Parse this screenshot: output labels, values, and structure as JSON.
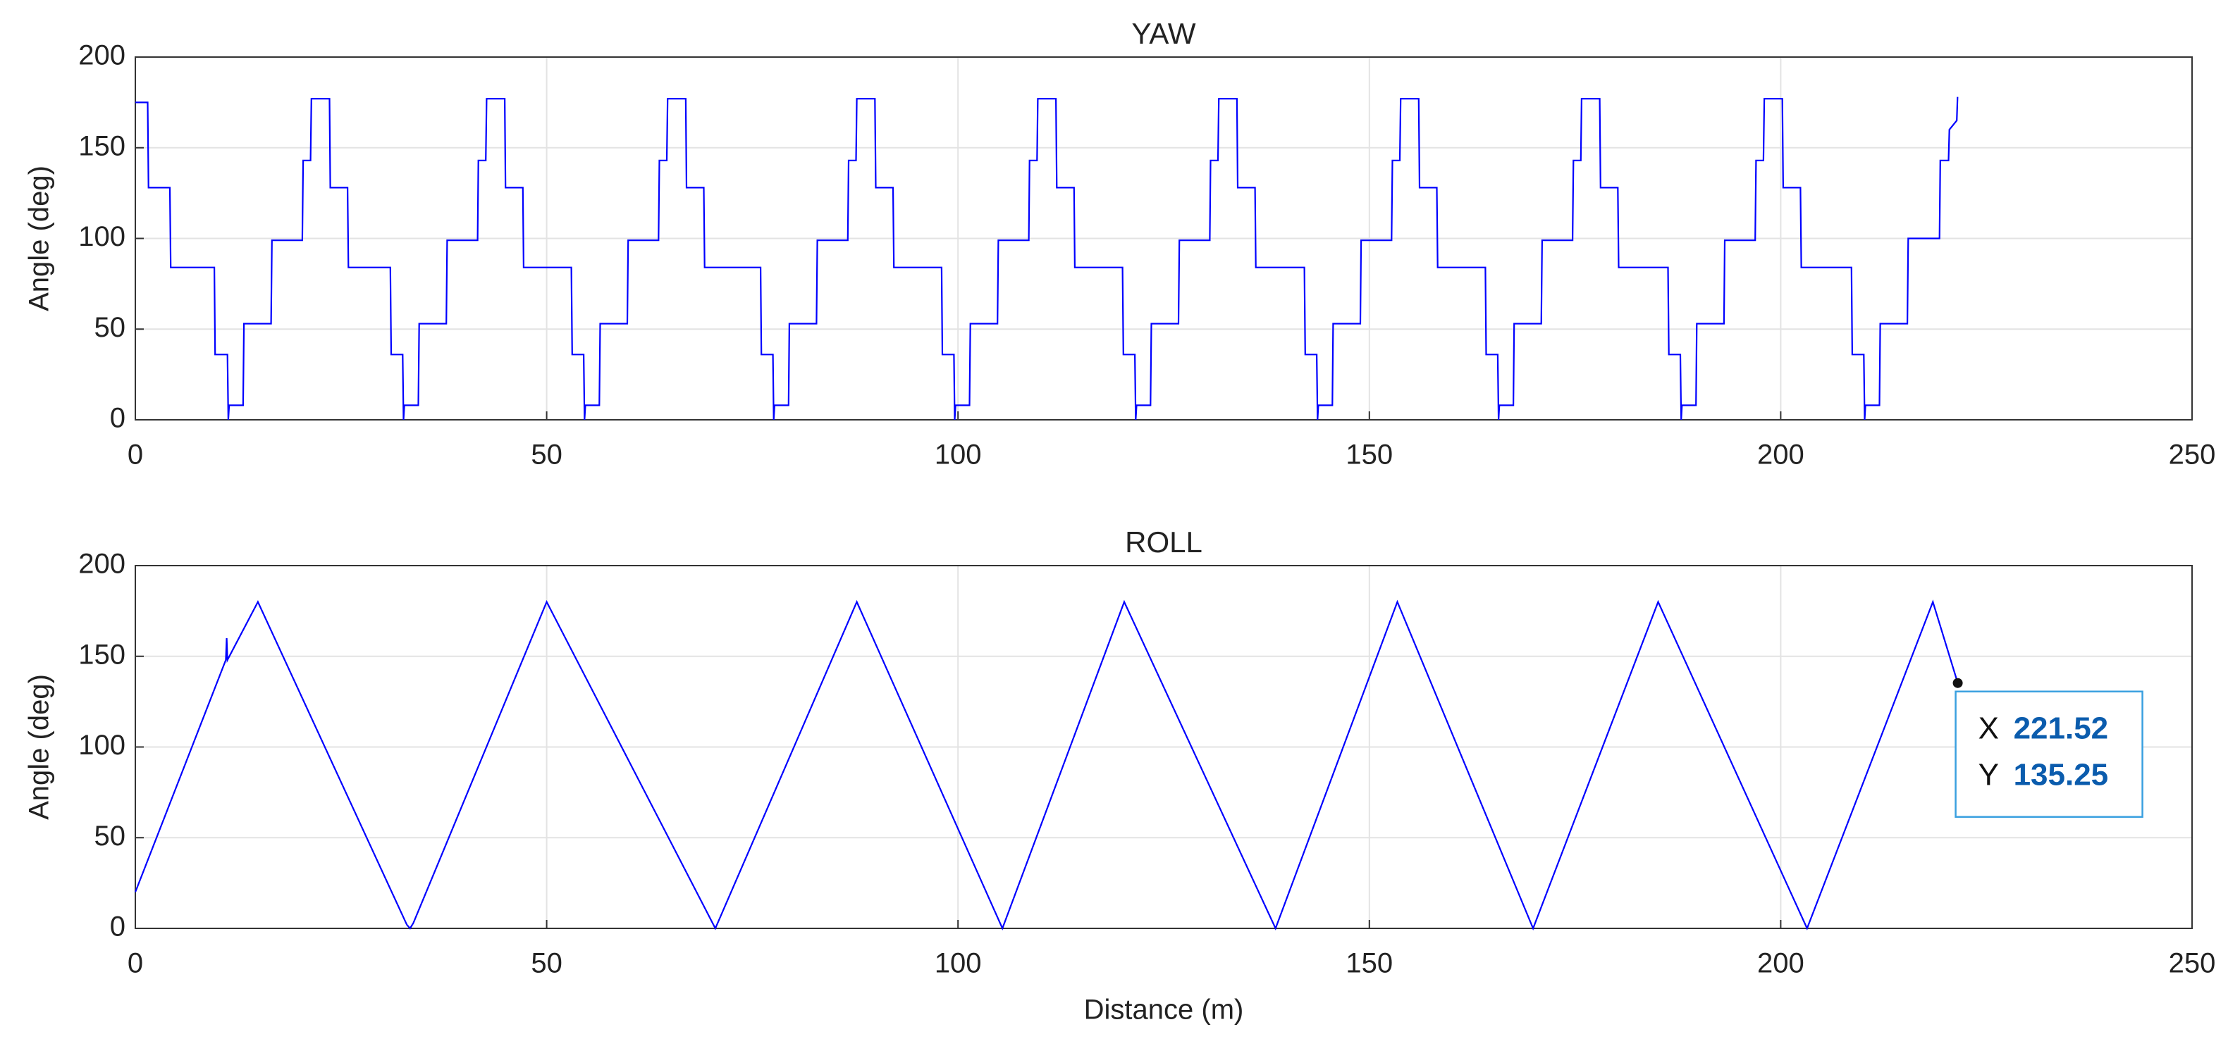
{
  "chart_data": [
    {
      "type": "line",
      "title": "YAW",
      "ylabel": "Angle (deg)",
      "color": "#0000ff",
      "grid": true,
      "xlim": [
        0,
        250
      ],
      "xticks": [
        0,
        50,
        100,
        150,
        200,
        250
      ],
      "ylim": [
        0,
        200
      ],
      "yticks": [
        0,
        50,
        100,
        150,
        200
      ],
      "x": [
        0,
        1.5,
        1.6,
        4.2,
        4.3,
        9.6,
        9.7,
        11.2,
        11.3,
        11.4,
        13.1,
        13.2,
        16.5,
        16.6,
        20.3,
        20.4,
        21.3,
        21.4,
        23.6,
        23.7,
        25.8,
        25.9,
        31.0,
        31.1,
        32.5,
        32.6,
        32.7,
        34.4,
        34.5,
        37.8,
        37.9,
        41.6,
        41.7,
        42.6,
        42.7,
        44.9,
        45.0,
        47.1,
        47.2,
        53.0,
        53.1,
        54.5,
        54.6,
        54.7,
        56.4,
        56.5,
        59.8,
        59.9,
        63.6,
        63.7,
        64.6,
        64.7,
        66.9,
        67.0,
        69.1,
        69.2,
        76.0,
        76.1,
        77.5,
        77.6,
        77.7,
        79.4,
        79.5,
        82.8,
        82.9,
        86.6,
        86.7,
        87.6,
        87.7,
        89.9,
        90.0,
        92.1,
        92.2,
        98.0,
        98.1,
        99.5,
        99.6,
        99.7,
        101.4,
        101.5,
        104.8,
        104.9,
        108.6,
        108.7,
        109.6,
        109.7,
        111.9,
        112.0,
        114.1,
        114.2,
        120.0,
        120.1,
        121.5,
        121.6,
        121.7,
        123.4,
        123.5,
        126.8,
        126.9,
        130.6,
        130.7,
        131.6,
        131.7,
        133.9,
        134.0,
        136.1,
        136.2,
        142.1,
        142.2,
        143.6,
        143.7,
        143.8,
        145.5,
        145.6,
        148.9,
        149.0,
        152.7,
        152.8,
        153.7,
        153.8,
        156.0,
        156.1,
        158.2,
        158.3,
        164.1,
        164.2,
        165.6,
        165.7,
        165.8,
        167.5,
        167.6,
        170.9,
        171.0,
        174.7,
        174.8,
        175.7,
        175.8,
        178.0,
        178.1,
        180.2,
        180.3,
        186.3,
        186.4,
        187.8,
        187.9,
        188.0,
        189.7,
        189.8,
        193.1,
        193.2,
        196.9,
        197.0,
        197.9,
        198.0,
        200.2,
        200.3,
        202.4,
        202.5,
        208.6,
        208.7,
        210.1,
        210.2,
        210.3,
        212.0,
        212.1,
        215.4,
        215.5,
        219.3,
        219.4,
        220.4,
        220.5,
        221.4,
        221.5
      ],
      "values": [
        175,
        175,
        128,
        128,
        84,
        84,
        36,
        36,
        0,
        8,
        8,
        53,
        53,
        99,
        99,
        143,
        143,
        177,
        177,
        128,
        128,
        84,
        84,
        36,
        36,
        0,
        8,
        8,
        53,
        53,
        99,
        99,
        143,
        143,
        177,
        177,
        128,
        128,
        84,
        84,
        36,
        36,
        0,
        8,
        8,
        53,
        53,
        99,
        99,
        143,
        143,
        177,
        177,
        128,
        128,
        84,
        84,
        36,
        36,
        0,
        8,
        8,
        53,
        53,
        99,
        99,
        143,
        143,
        177,
        177,
        128,
        128,
        84,
        84,
        36,
        36,
        0,
        8,
        8,
        53,
        53,
        99,
        99,
        143,
        143,
        177,
        177,
        128,
        128,
        84,
        84,
        36,
        36,
        0,
        8,
        8,
        53,
        53,
        99,
        99,
        143,
        143,
        177,
        177,
        128,
        128,
        84,
        84,
        36,
        36,
        0,
        8,
        8,
        53,
        53,
        99,
        99,
        143,
        143,
        177,
        177,
        128,
        128,
        84,
        84,
        36,
        36,
        0,
        8,
        8,
        53,
        53,
        99,
        99,
        143,
        143,
        177,
        177,
        128,
        128,
        84,
        84,
        36,
        36,
        0,
        8,
        8,
        53,
        53,
        99,
        99,
        143,
        143,
        177,
        177,
        128,
        128,
        84,
        84,
        36,
        36,
        0,
        8,
        8,
        53,
        53,
        100,
        100,
        143,
        143,
        160,
        165,
        178
      ]
    },
    {
      "type": "line",
      "title": "ROLL",
      "ylabel": "Angle (deg)",
      "xlabel": "Distance (m)",
      "color": "#0000ff",
      "grid": true,
      "xlim": [
        0,
        250
      ],
      "xticks": [
        0,
        50,
        100,
        150,
        200,
        250
      ],
      "ylim": [
        0,
        200
      ],
      "yticks": [
        0,
        50,
        100,
        150,
        200
      ],
      "x": [
        0,
        11.0,
        11.1,
        11.2,
        14.9,
        33.0,
        33.4,
        33.8,
        50.0,
        70.5,
        87.7,
        105.4,
        120.2,
        138.6,
        153.4,
        169.9,
        185.1,
        203.2,
        218.5,
        221.52
      ],
      "values": [
        20,
        148,
        160,
        148,
        180,
        2,
        0,
        3,
        180,
        0,
        180,
        0,
        180,
        0,
        180,
        0,
        180,
        0,
        180,
        135.25
      ],
      "datatip": {
        "x_label": "X",
        "x": 221.52,
        "y_label": "Y",
        "y": 135.25
      }
    }
  ]
}
